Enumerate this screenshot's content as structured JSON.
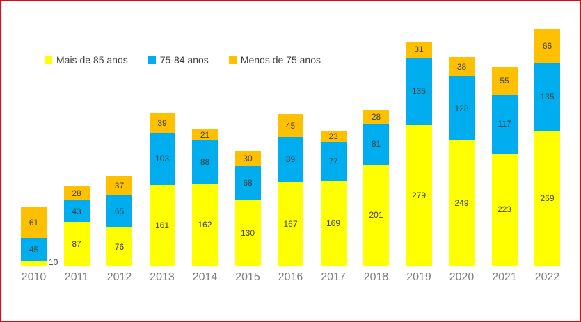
{
  "chart_data": {
    "type": "bar",
    "stacked": true,
    "orientation": "vertical",
    "title": "",
    "xlabel": "",
    "ylabel": "",
    "grid": false,
    "data_labels": true,
    "legend_position": "top-left",
    "categories": [
      "2010",
      "2011",
      "2012",
      "2013",
      "2014",
      "2015",
      "2016",
      "2017",
      "2018",
      "2019",
      "2020",
      "2021",
      "2022"
    ],
    "series": [
      {
        "name": "Mais de 85 anos",
        "color": "#FFFF00",
        "values": [
          10,
          87,
          76,
          161,
          162,
          130,
          167,
          169,
          201,
          279,
          249,
          223,
          269
        ]
      },
      {
        "name": "75-84 anos",
        "color": "#00AEEF",
        "values": [
          45,
          43,
          65,
          103,
          88,
          68,
          89,
          77,
          81,
          135,
          128,
          117,
          135
        ]
      },
      {
        "name": "Menos de 75 anos",
        "color": "#FFC000",
        "values": [
          61,
          28,
          37,
          39,
          21,
          30,
          45,
          23,
          28,
          31,
          38,
          55,
          66
        ]
      }
    ],
    "totals": [
      116,
      158,
      178,
      303,
      271,
      228,
      301,
      269,
      310,
      445,
      415,
      395,
      470
    ]
  },
  "styles": {
    "frame_border_color": "#E30613",
    "background_color": "#FFFFFF",
    "value_label_color": "#404040",
    "legend_text_color": "#404040",
    "axis_tick_color": "#7F7F7F",
    "axis_line_color": "#D9D9D9"
  }
}
